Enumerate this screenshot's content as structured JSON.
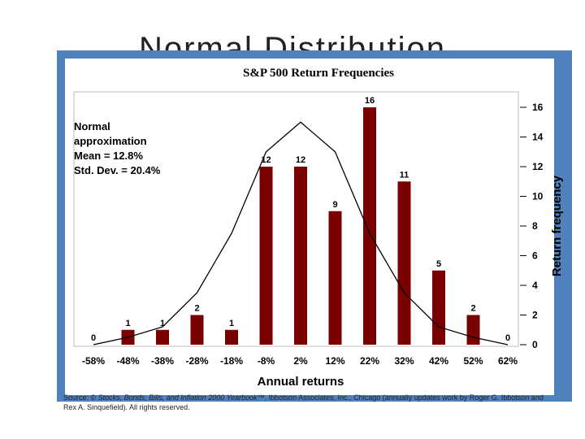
{
  "slide": {
    "title": "Normal Distribution"
  },
  "chart_data": {
    "type": "bar",
    "title": "S&P 500 Return Frequencies",
    "xlabel": "Annual returns",
    "ylabel": "Return frequency",
    "categories": [
      "-58%",
      "-48%",
      "-38%",
      "-28%",
      "-18%",
      "-8%",
      "2%",
      "12%",
      "22%",
      "32%",
      "42%",
      "52%",
      "62%"
    ],
    "values": [
      0,
      1,
      1,
      2,
      1,
      12,
      12,
      9,
      16,
      11,
      5,
      2,
      0
    ],
    "ylim": [
      0,
      16
    ],
    "yticks": [
      0,
      2,
      4,
      6,
      8,
      10,
      12,
      14,
      16
    ],
    "normal_curve": [
      0,
      0.5,
      1.2,
      3.5,
      7.5,
      13,
      15,
      13,
      7.5,
      3.5,
      1.2,
      0.5,
      0
    ],
    "annotation": [
      "Normal",
      "approximation",
      "Mean = 12.8%",
      "Std. Dev. = 20.4%"
    ],
    "colors": {
      "bar": "#7a0000",
      "curve": "#000000"
    }
  },
  "source": {
    "prefix": "Source: © ",
    "title_italic": "Stocks, Bonds, Bills, and Inflation 2000 Yearbook™",
    "suffix": ", Ibbotson Associates, Inc., Chicago (annually updates work by Roger G. Ibbotson and Rex A. Sinquefield). All rights reserved."
  }
}
